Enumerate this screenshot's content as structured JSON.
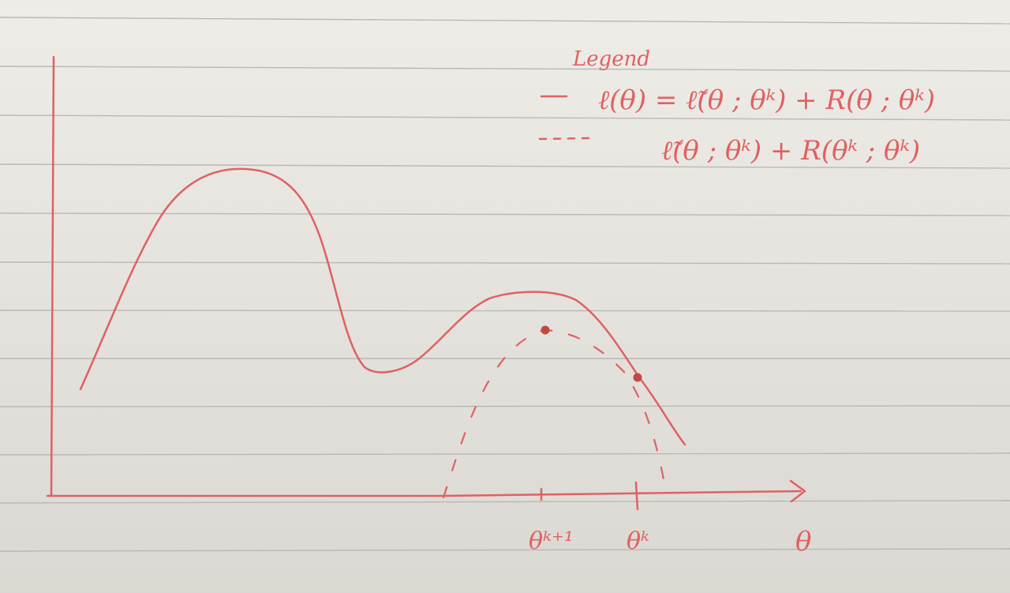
{
  "legend": {
    "heading": "Legend",
    "solid_entry": "ℓ(θ) = ℓ̃(θ ; θᵏ) + R(θ ; θᵏ)",
    "dashed_entry": "ℓ̃(θ ; θᵏ) + R(θᵏ ; θᵏ)"
  },
  "axis": {
    "x_label": "θ",
    "ticks": [
      {
        "label": "θᵏ⁺¹"
      },
      {
        "label": "θᵏ"
      }
    ]
  },
  "colors": {
    "ink": "#df6161",
    "point": "#c14a3f",
    "rule_line": "#b9b8b6",
    "paper": "#e9e6e0"
  }
}
